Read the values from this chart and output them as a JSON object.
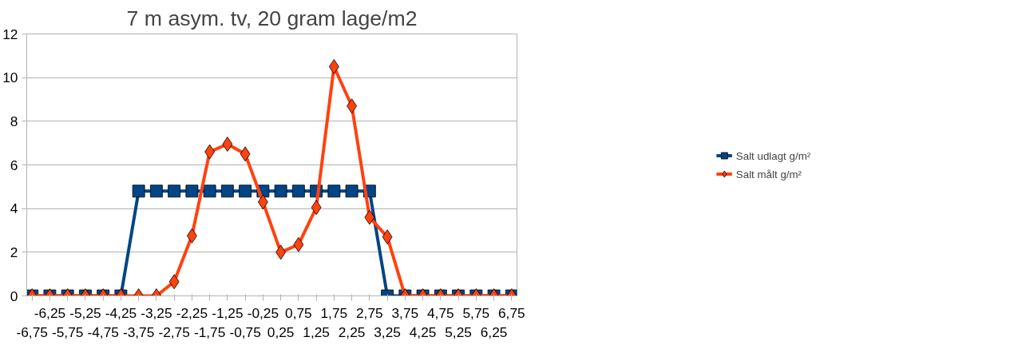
{
  "chart_data": {
    "type": "line",
    "title": "7 m asym. tv, 20 gram lage/m2",
    "categories": [
      "-6,75",
      "-6,25",
      "-5,75",
      "-5,25",
      "-4,75",
      "-4,25",
      "-3,75",
      "-3,25",
      "-2,75",
      "-2,25",
      "-1,75",
      "-1,25",
      "-0,75",
      "-0,25",
      "0,25",
      "0,75",
      "1,25",
      "1,75",
      "2,25",
      "2,75",
      "3,25",
      "3,75",
      "4,25",
      "4,75",
      "5,25",
      "5,75",
      "6,25",
      "6,75"
    ],
    "series": [
      {
        "name": "Salt udlagt g/m²",
        "color": "#004586",
        "marker": "square",
        "values": [
          0,
          0,
          0,
          0,
          0,
          0,
          4.8,
          4.8,
          4.8,
          4.8,
          4.8,
          4.8,
          4.8,
          4.8,
          4.8,
          4.8,
          4.8,
          4.8,
          4.8,
          4.8,
          0,
          0,
          0,
          0,
          0,
          0,
          0,
          0
        ]
      },
      {
        "name": "Salt målt g/m²",
        "color": "#ff420e",
        "marker": "diamond",
        "values": [
          0,
          0,
          0,
          0,
          0,
          0,
          0,
          0,
          0.65,
          2.75,
          6.6,
          6.95,
          6.5,
          4.3,
          2.0,
          2.35,
          4.05,
          10.5,
          8.7,
          3.6,
          2.7,
          0,
          0,
          0,
          0,
          0,
          0,
          0
        ]
      }
    ],
    "ylim": [
      0,
      12
    ],
    "yticks": [
      0,
      2,
      4,
      6,
      8,
      10,
      12
    ],
    "grid": "y",
    "legend": "right",
    "line_style": "solid"
  }
}
